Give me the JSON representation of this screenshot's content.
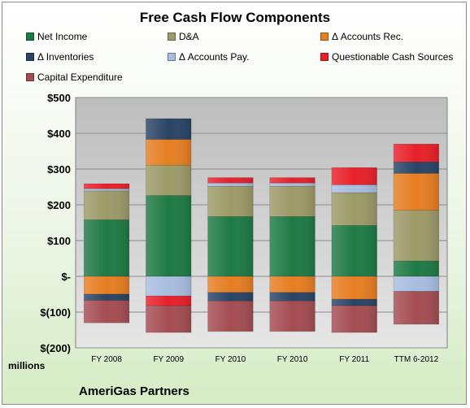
{
  "chart_data": {
    "type": "bar",
    "stacked": true,
    "title": "Free Cash Flow Components",
    "categories": [
      "FY 2008",
      "FY 2009",
      "FY 2010",
      "FY 2010",
      "FY 2011",
      "TTM 6-2012"
    ],
    "ylim": [
      -200,
      500
    ],
    "yticks": [
      {
        "value": 500,
        "label": "$500"
      },
      {
        "value": 400,
        "label": "$400"
      },
      {
        "value": 300,
        "label": "$300"
      },
      {
        "value": 200,
        "label": "$200"
      },
      {
        "value": 100,
        "label": "$100"
      },
      {
        "value": 0,
        "label": "$-"
      },
      {
        "value": -100,
        "label": "$(100)"
      },
      {
        "value": -200,
        "label": "$(200)"
      }
    ],
    "unit_label": "millions",
    "grid": true,
    "legend_position": "top",
    "series": [
      {
        "name": "Net Income",
        "color": "#1e7a45",
        "values": [
          158,
          226,
          167,
          167,
          142,
          43
        ]
      },
      {
        "name": "D&A",
        "color": "#9c9a67",
        "values": [
          81,
          85,
          85,
          85,
          92,
          142
        ]
      },
      {
        "name": "Δ Accounts Rec.",
        "color": "#e67e22",
        "values": [
          -50,
          72,
          -45,
          -45,
          -64,
          103
        ]
      },
      {
        "name": "Δ Inventories",
        "color": "#2a4466",
        "values": [
          -17,
          58,
          -24,
          -24,
          -18,
          32
        ]
      },
      {
        "name": "Δ Accounts Pay.",
        "color": "#a7bde0",
        "values": [
          6,
          -55,
          9,
          9,
          22,
          -42
        ]
      },
      {
        "name": "Questionable Cash Sources",
        "color": "#e8202a",
        "values": [
          14,
          -27,
          15,
          15,
          48,
          50
        ]
      },
      {
        "name": "Capital Expenditure",
        "color": "#a44d52",
        "values": [
          -63,
          -75,
          -85,
          -85,
          -75,
          -92
        ]
      }
    ]
  },
  "footer": {
    "company": "AmeriGas Partners"
  }
}
